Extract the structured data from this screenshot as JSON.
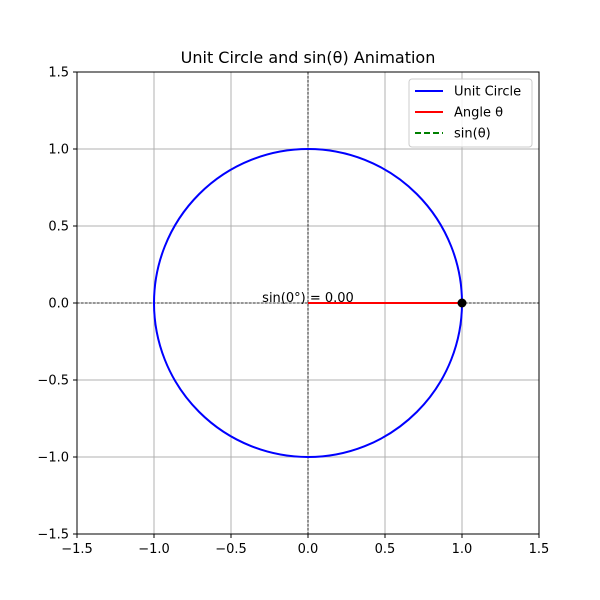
{
  "chart_data": {
    "type": "line",
    "title": "Unit Circle and sin(θ) Animation",
    "xlabel": "",
    "ylabel": "",
    "xlim": [
      -1.5,
      1.5
    ],
    "ylim": [
      -1.5,
      1.5
    ],
    "xticks": [
      -1.5,
      -1.0,
      -0.5,
      0.0,
      0.5,
      1.0,
      1.5
    ],
    "yticks": [
      -1.5,
      -1.0,
      -0.5,
      0.0,
      0.5,
      1.0,
      1.5
    ],
    "xtick_labels": [
      "−1.5",
      "−1.0",
      "−0.5",
      "0.0",
      "0.5",
      "1.0",
      "1.5"
    ],
    "ytick_labels": [
      "−1.5",
      "−1.0",
      "−0.5",
      "0.0",
      "0.5",
      "1.0",
      "1.5"
    ],
    "grid": true,
    "legend_position": "top-right",
    "series": [
      {
        "name": "Unit Circle",
        "kind": "circle",
        "center": [
          0,
          0
        ],
        "radius": 1.0,
        "color": "#0000ff",
        "style": "solid"
      },
      {
        "name": "Angle θ",
        "kind": "line",
        "x": [
          0,
          1.0
        ],
        "y": [
          0,
          0
        ],
        "color": "#ff0000",
        "style": "solid"
      },
      {
        "name": "sin(θ)",
        "kind": "line",
        "x": [
          1.0,
          1.0
        ],
        "y": [
          0,
          0
        ],
        "color": "#008000",
        "style": "dashed"
      }
    ],
    "point": {
      "x": 1.0,
      "y": 0.0,
      "color": "#000000"
    },
    "reference_lines": {
      "x": 0,
      "y": 0,
      "color": "#000000",
      "style": "dashed"
    },
    "annotation": {
      "text": "sin(0°) = 0.00",
      "x": 0.0,
      "y": 0.0
    }
  }
}
